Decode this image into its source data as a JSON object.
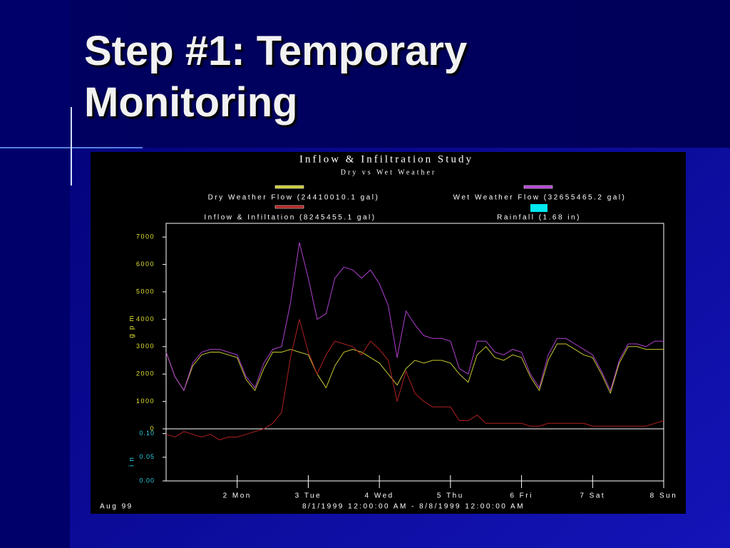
{
  "slide": {
    "title": "Step #1: Temporary Monitoring"
  },
  "chart_data": {
    "type": "line",
    "title": "Inflow & Infiltration Study",
    "subtitle": "Dry vs Wet Weather",
    "ylabel": "gpm",
    "y2label": "in",
    "xlabel": "8/1/1999 12:00:00 AM - 8/8/1999 12:00:00 AM",
    "annotations": [
      "Aug 99"
    ],
    "xlim": [
      1,
      8
    ],
    "xticks": [
      {
        "value": 2,
        "label": "2 Mon"
      },
      {
        "value": 3,
        "label": "3 Tue"
      },
      {
        "value": 4,
        "label": "4 Wed"
      },
      {
        "value": 5,
        "label": "5 Thu"
      },
      {
        "value": 6,
        "label": "6 Fri"
      },
      {
        "value": 7,
        "label": "7 Sat"
      },
      {
        "value": 8,
        "label": "8 Sun"
      }
    ],
    "ylim": [
      0,
      7500
    ],
    "yticks": [
      0,
      1000,
      2000,
      3000,
      4000,
      5000,
      6000,
      7000
    ],
    "y2lim": [
      0,
      0.11
    ],
    "y2ticks": [
      {
        "value": 0,
        "label": "0.00"
      },
      0.05,
      {
        "value": 0.1,
        "label": "0.10"
      }
    ],
    "grid": false,
    "x": [
      1,
      1.125,
      1.25,
      1.375,
      1.5,
      1.625,
      1.75,
      1.875,
      2,
      2.125,
      2.25,
      2.375,
      2.5,
      2.625,
      2.75,
      2.875,
      3,
      3.125,
      3.25,
      3.375,
      3.5,
      3.625,
      3.75,
      3.875,
      4,
      4.125,
      4.25,
      4.375,
      4.5,
      4.625,
      4.75,
      4.875,
      5,
      5.125,
      5.25,
      5.375,
      5.5,
      5.625,
      5.75,
      5.875,
      6,
      6.125,
      6.25,
      6.375,
      6.5,
      6.625,
      6.75,
      6.875,
      7,
      7.125,
      7.25,
      7.375,
      7.5,
      7.625,
      7.75,
      7.875,
      8
    ],
    "series": [
      {
        "name": "Dry Weather Flow (24410010.1 gal)",
        "color": "#c8c832",
        "values": [
          2800,
          1900,
          1400,
          2300,
          2700,
          2800,
          2800,
          2700,
          2600,
          1800,
          1400,
          2200,
          2800,
          2800,
          2900,
          2800,
          2700,
          2000,
          1500,
          2300,
          2800,
          2900,
          2800,
          2600,
          2400,
          2000,
          1600,
          2200,
          2500,
          2400,
          2500,
          2500,
          2400,
          2000,
          1700,
          2700,
          3000,
          2600,
          2500,
          2700,
          2600,
          1900,
          1400,
          2500,
          3100,
          3100,
          2900,
          2700,
          2600,
          2000,
          1300,
          2400,
          3000,
          3000,
          2900,
          2900,
          2900
        ]
      },
      {
        "name": "Wet Weather Flow (32655465.2 gal)",
        "color": "#b040d0",
        "values": [
          2800,
          1900,
          1400,
          2400,
          2800,
          2900,
          2900,
          2800,
          2700,
          1900,
          1500,
          2400,
          2900,
          3000,
          4600,
          6800,
          5500,
          4000,
          4200,
          5500,
          5900,
          5800,
          5500,
          5800,
          5300,
          4500,
          2600,
          4300,
          3800,
          3400,
          3300,
          3300,
          3200,
          2200,
          2000,
          3200,
          3200,
          2800,
          2700,
          2900,
          2800,
          2000,
          1500,
          2700,
          3300,
          3300,
          3100,
          2900,
          2700,
          2100,
          1400,
          2500,
          3100,
          3100,
          3000,
          3200,
          3200
        ]
      },
      {
        "name": "Inflow & Infiltation (8245455.1 gal)",
        "color": "#b02020",
        "values": [
          -200,
          -300,
          -100,
          -200,
          -300,
          -200,
          -400,
          -300,
          -300,
          -200,
          -100,
          0,
          200,
          600,
          2600,
          4000,
          2800,
          2000,
          2700,
          3200,
          3100,
          3000,
          2700,
          3200,
          2900,
          2500,
          1000,
          2100,
          1300,
          1000,
          800,
          800,
          800,
          300,
          300,
          500,
          200,
          200,
          200,
          200,
          200,
          100,
          100,
          200,
          200,
          200,
          200,
          200,
          100,
          100,
          100,
          100,
          100,
          100,
          100,
          200,
          300
        ]
      },
      {
        "name": "Rainfall (1.68 in)",
        "color": "#00e8f0",
        "axis": "y2",
        "values": [
          0,
          0,
          0,
          0,
          0,
          0,
          0,
          0,
          0,
          0,
          0,
          0,
          0,
          0,
          0,
          0,
          0,
          0,
          0,
          0,
          0,
          0,
          0,
          0,
          0,
          0,
          0,
          0,
          0,
          0,
          0,
          0,
          0,
          0,
          0,
          0,
          0,
          0,
          0,
          0,
          0,
          0,
          0,
          0,
          0,
          0,
          0,
          0,
          0,
          0,
          0,
          0,
          0,
          0,
          0,
          0,
          0
        ]
      }
    ]
  }
}
